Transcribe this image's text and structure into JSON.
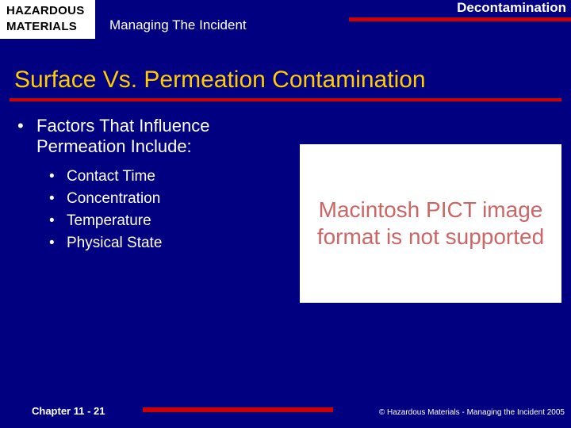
{
  "header": {
    "badge_line1": "HAZARDOUS",
    "badge_line2": "MATERIALS",
    "subtitle": "Managing The Incident",
    "topic": "Decontamination"
  },
  "title": "Surface Vs. Permeation Contamination",
  "main_bullet": "Factors That Influence Permeation Include:",
  "sub_bullets": {
    "0": "Contact Time",
    "1": "Concentration",
    "2": "Temperature",
    "3": "Physical State"
  },
  "image_placeholder": "Macintosh PICT image format is not supported",
  "footer": {
    "chapter": "Chapter 11 - 21",
    "copyright": "© Hazardous Materials - Managing the Incident 2005"
  },
  "colors": {
    "background": "#000080",
    "accent_red": "#cc0000",
    "title_yellow": "#ffcc00",
    "text_white": "#ffffff",
    "badge_bg": "#ffffff",
    "badge_text": "#000000",
    "placeholder_text": "#cc6666"
  }
}
